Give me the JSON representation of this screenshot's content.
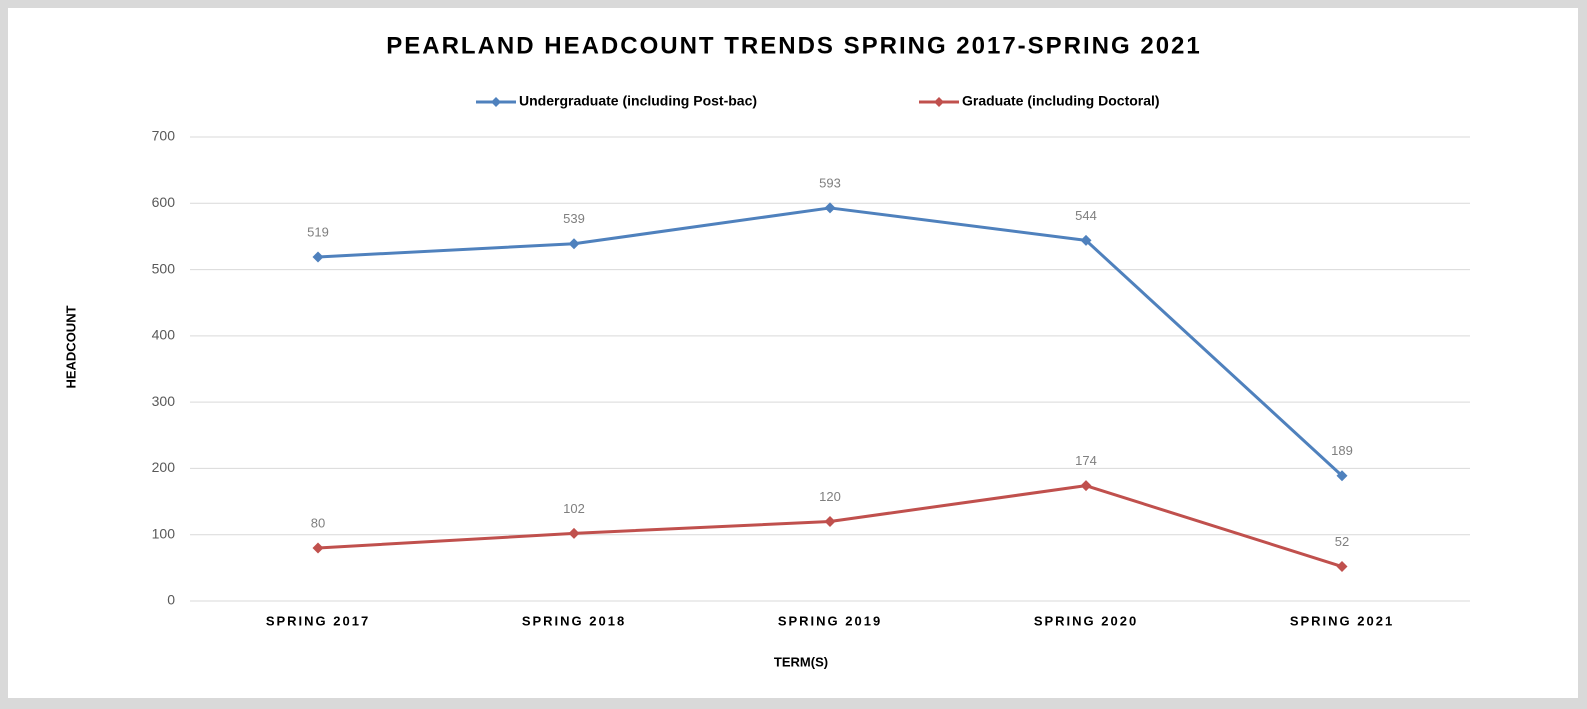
{
  "chart_data": {
    "type": "line",
    "title": "PEARLAND HEADCOUNT TRENDS SPRING 2017-SPRING 2021",
    "y_label": "HEADCOUNT",
    "x_label": "TERM(S)",
    "categories": [
      "SPRING 2017",
      "SPRING 2018",
      "SPRING 2019",
      "SPRING 2020",
      "SPRING 2021"
    ],
    "series": [
      {
        "name": "Undergraduate (including Post-bac)",
        "color": "#4f81bd",
        "values": [
          519,
          539,
          593,
          544,
          189
        ]
      },
      {
        "name": "Graduate (including Doctoral)",
        "color": "#c0504d",
        "values": [
          80,
          102,
          120,
          174,
          52
        ]
      }
    ],
    "ylim": [
      0,
      700
    ],
    "yticks": [
      0,
      100,
      200,
      300,
      400,
      500,
      600,
      700
    ],
    "grid": true,
    "legend": "top",
    "data_labels": true
  }
}
